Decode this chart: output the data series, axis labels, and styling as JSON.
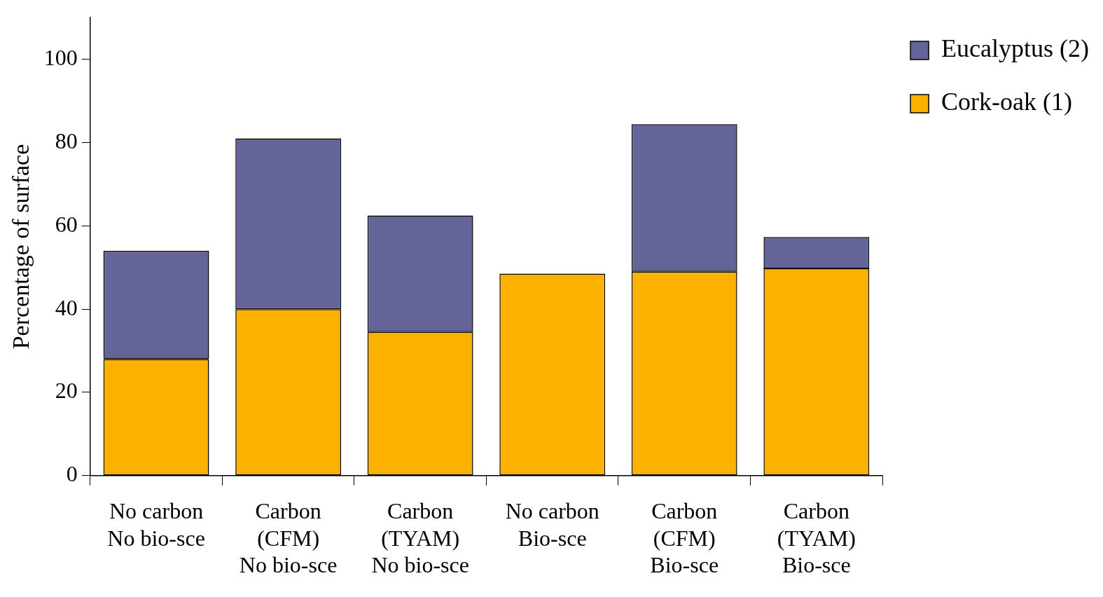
{
  "chart_data": {
    "type": "bar",
    "ylabel": "Percentage of surface",
    "categories": [
      "No carbon\nNo bio-sce",
      "Carbon\n(CFM)\nNo bio-sce",
      "Carbon\n(TYAM)\nNo bio-sce",
      "No carbon\nBio-sce",
      "Carbon\n(CFM)\nBio-sce",
      "Carbon\n(TYAM)\nBio-sce"
    ],
    "stacked": true,
    "series": [
      {
        "name": "Cork-oak (1)",
        "color": "#fcb000",
        "values": [
          28,
          40,
          34.5,
          48.5,
          49,
          49.8
        ]
      },
      {
        "name": "Eucalyptus (2)",
        "color": "#646498",
        "values": [
          26,
          41,
          28,
          0,
          35.4,
          7.5
        ]
      }
    ],
    "ylim": [
      0,
      110
    ],
    "yticks": [
      0,
      20,
      40,
      60,
      80,
      100
    ],
    "grid": false,
    "legend": "top right"
  }
}
